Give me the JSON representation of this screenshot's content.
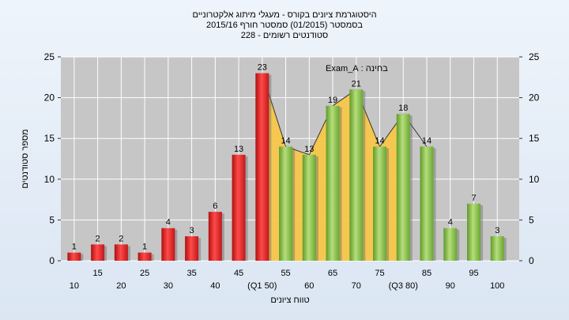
{
  "chart_data": {
    "type": "bar",
    "title_lines": [
      "היסטוגרמת ציונים בקורס - מעגלי מיתוג אלקטרוניים",
      "בסמסטר  (01/2015)  סמסטר חורף 2015/16",
      "סטודנטים רשומים - 228"
    ],
    "xlabel": "טווח ציונים",
    "ylabel": "מספר סטודנטים",
    "legend_label": "בחינה : Exam_A",
    "ylim": [
      0,
      25
    ],
    "yticks": [
      0,
      5,
      10,
      15,
      20,
      25
    ],
    "categories": [
      "10",
      "15",
      "20",
      "25",
      "30",
      "35",
      "40",
      "45",
      "(Q1 50)",
      "55",
      "60",
      "65",
      "70",
      "75",
      "(Q3 80)",
      "85",
      "90",
      "95",
      "100"
    ],
    "values": [
      1,
      2,
      2,
      1,
      4,
      3,
      6,
      13,
      23,
      14,
      13,
      19,
      21,
      14,
      18,
      14,
      4,
      7,
      3
    ],
    "bar_groups": [
      "red",
      "red",
      "red",
      "red",
      "red",
      "red",
      "red",
      "red",
      "red",
      "green",
      "green",
      "green",
      "green",
      "green",
      "green",
      "green",
      "green",
      "green",
      "green"
    ],
    "iqr_band": {
      "from_category": "(Q1 50)",
      "to_category": "(Q3 80)"
    },
    "colors": {
      "red_bar": "#e02020",
      "green_bar": "#8cc04a",
      "iqr_fill": "#f8c74a",
      "plot_bg": "#c6c6c6",
      "grid": "#ffffff"
    },
    "grid": true
  }
}
